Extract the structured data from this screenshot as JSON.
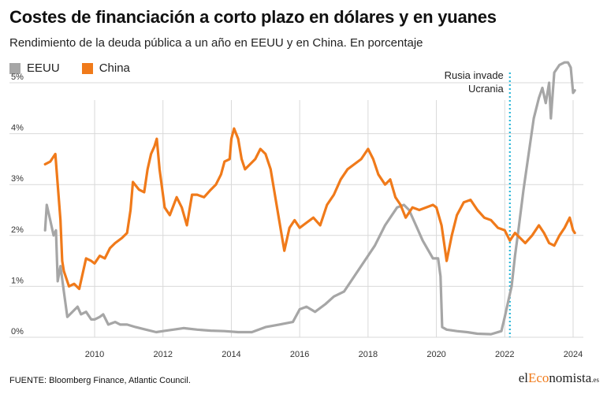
{
  "header": {
    "title": "Costes de financiación a corto plazo en dólares y en yuanes",
    "subtitle": "Rendimiento de la deuda pública a un año en EEUU y en China. En porcentaje"
  },
  "legend": [
    {
      "name": "EEUU",
      "color": "#a6a6a6"
    },
    {
      "name": "China",
      "color": "#f07a1a"
    }
  ],
  "footer": {
    "source": "FUENTE: Bloomberg Finance, Atlantic Council.",
    "logo_prefix": "el",
    "logo_accent": "Eco",
    "logo_suffix": "nomista",
    "logo_tld": ".es"
  },
  "chart_data": {
    "type": "line",
    "title": "Costes de financiación a corto plazo en dólares y en yuanes",
    "subtitle": "Rendimiento de la deuda pública a un año en EEUU y en China. En porcentaje",
    "xlabel": "",
    "ylabel": "",
    "xlim": [
      2008.2,
      2024.3
    ],
    "ylim": [
      0,
      5
    ],
    "grid": true,
    "legend_position": "top-left",
    "x_ticks": [
      2010,
      2012,
      2014,
      2016,
      2018,
      2020,
      2022,
      2024
    ],
    "y_ticks": [
      0,
      1,
      2,
      3,
      4,
      5
    ],
    "y_tick_labels": [
      "0%",
      "1%",
      "2%",
      "3%",
      "4%",
      "5%"
    ],
    "annotations": [
      {
        "x": 2022.15,
        "label_lines": [
          "Rusia invade",
          "Ucrania"
        ],
        "style": "dotted-vertical",
        "color": "#29b6d8"
      }
    ],
    "series": [
      {
        "name": "EEUU",
        "color": "#a6a6a6",
        "points": [
          [
            2008.55,
            2.1
          ],
          [
            2008.6,
            2.6
          ],
          [
            2008.7,
            2.3
          ],
          [
            2008.8,
            2.0
          ],
          [
            2008.87,
            2.1
          ],
          [
            2008.92,
            1.1
          ],
          [
            2009.0,
            1.4
          ],
          [
            2009.1,
            0.9
          ],
          [
            2009.2,
            0.4
          ],
          [
            2009.35,
            0.5
          ],
          [
            2009.5,
            0.6
          ],
          [
            2009.6,
            0.45
          ],
          [
            2009.75,
            0.5
          ],
          [
            2009.9,
            0.35
          ],
          [
            2010.0,
            0.35
          ],
          [
            2010.15,
            0.4
          ],
          [
            2010.25,
            0.45
          ],
          [
            2010.4,
            0.25
          ],
          [
            2010.6,
            0.3
          ],
          [
            2010.75,
            0.25
          ],
          [
            2010.95,
            0.25
          ],
          [
            2011.2,
            0.2
          ],
          [
            2011.5,
            0.15
          ],
          [
            2011.8,
            0.1
          ],
          [
            2012.0,
            0.12
          ],
          [
            2012.3,
            0.15
          ],
          [
            2012.6,
            0.18
          ],
          [
            2013.0,
            0.15
          ],
          [
            2013.4,
            0.13
          ],
          [
            2013.8,
            0.12
          ],
          [
            2014.2,
            0.1
          ],
          [
            2014.6,
            0.1
          ],
          [
            2015.0,
            0.2
          ],
          [
            2015.4,
            0.25
          ],
          [
            2015.8,
            0.3
          ],
          [
            2016.0,
            0.55
          ],
          [
            2016.2,
            0.6
          ],
          [
            2016.45,
            0.5
          ],
          [
            2016.75,
            0.65
          ],
          [
            2017.0,
            0.8
          ],
          [
            2017.3,
            0.9
          ],
          [
            2017.6,
            1.2
          ],
          [
            2017.9,
            1.5
          ],
          [
            2018.2,
            1.8
          ],
          [
            2018.5,
            2.2
          ],
          [
            2018.85,
            2.55
          ],
          [
            2019.05,
            2.6
          ],
          [
            2019.2,
            2.5
          ],
          [
            2019.4,
            2.2
          ],
          [
            2019.6,
            1.9
          ],
          [
            2019.9,
            1.55
          ],
          [
            2020.05,
            1.55
          ],
          [
            2020.12,
            1.2
          ],
          [
            2020.17,
            0.2
          ],
          [
            2020.3,
            0.15
          ],
          [
            2020.6,
            0.12
          ],
          [
            2020.9,
            0.1
          ],
          [
            2021.2,
            0.07
          ],
          [
            2021.6,
            0.06
          ],
          [
            2021.9,
            0.12
          ],
          [
            2022.0,
            0.4
          ],
          [
            2022.1,
            0.7
          ],
          [
            2022.2,
            1.0
          ],
          [
            2022.3,
            1.6
          ],
          [
            2022.4,
            2.1
          ],
          [
            2022.55,
            2.9
          ],
          [
            2022.7,
            3.6
          ],
          [
            2022.85,
            4.3
          ],
          [
            2023.0,
            4.7
          ],
          [
            2023.1,
            4.9
          ],
          [
            2023.2,
            4.6
          ],
          [
            2023.3,
            5.0
          ],
          [
            2023.35,
            4.3
          ],
          [
            2023.45,
            5.2
          ],
          [
            2023.6,
            5.35
          ],
          [
            2023.75,
            5.4
          ],
          [
            2023.85,
            5.4
          ],
          [
            2023.93,
            5.3
          ],
          [
            2024.0,
            4.8
          ],
          [
            2024.05,
            4.85
          ]
        ]
      },
      {
        "name": "China",
        "color": "#f07a1a",
        "points": [
          [
            2008.55,
            3.4
          ],
          [
            2008.7,
            3.45
          ],
          [
            2008.85,
            3.6
          ],
          [
            2008.92,
            3.0
          ],
          [
            2009.0,
            2.3
          ],
          [
            2009.05,
            1.5
          ],
          [
            2009.1,
            1.3
          ],
          [
            2009.25,
            1.0
          ],
          [
            2009.4,
            1.05
          ],
          [
            2009.55,
            0.95
          ],
          [
            2009.75,
            1.55
          ],
          [
            2009.9,
            1.5
          ],
          [
            2010.0,
            1.45
          ],
          [
            2010.15,
            1.6
          ],
          [
            2010.3,
            1.55
          ],
          [
            2010.45,
            1.75
          ],
          [
            2010.6,
            1.85
          ],
          [
            2010.8,
            1.95
          ],
          [
            2010.95,
            2.05
          ],
          [
            2011.05,
            2.5
          ],
          [
            2011.12,
            3.05
          ],
          [
            2011.3,
            2.9
          ],
          [
            2011.45,
            2.85
          ],
          [
            2011.55,
            3.3
          ],
          [
            2011.65,
            3.6
          ],
          [
            2011.75,
            3.75
          ],
          [
            2011.82,
            3.9
          ],
          [
            2011.9,
            3.3
          ],
          [
            2012.05,
            2.55
          ],
          [
            2012.2,
            2.4
          ],
          [
            2012.4,
            2.75
          ],
          [
            2012.55,
            2.55
          ],
          [
            2012.7,
            2.2
          ],
          [
            2012.85,
            2.8
          ],
          [
            2013.0,
            2.8
          ],
          [
            2013.2,
            2.75
          ],
          [
            2013.4,
            2.9
          ],
          [
            2013.55,
            3.0
          ],
          [
            2013.7,
            3.2
          ],
          [
            2013.8,
            3.45
          ],
          [
            2013.95,
            3.5
          ],
          [
            2014.0,
            3.9
          ],
          [
            2014.08,
            4.1
          ],
          [
            2014.2,
            3.9
          ],
          [
            2014.3,
            3.5
          ],
          [
            2014.4,
            3.3
          ],
          [
            2014.55,
            3.4
          ],
          [
            2014.7,
            3.5
          ],
          [
            2014.85,
            3.7
          ],
          [
            2015.0,
            3.6
          ],
          [
            2015.15,
            3.3
          ],
          [
            2015.3,
            2.7
          ],
          [
            2015.45,
            2.1
          ],
          [
            2015.55,
            1.7
          ],
          [
            2015.7,
            2.15
          ],
          [
            2015.85,
            2.3
          ],
          [
            2016.0,
            2.15
          ],
          [
            2016.2,
            2.25
          ],
          [
            2016.4,
            2.35
          ],
          [
            2016.6,
            2.2
          ],
          [
            2016.8,
            2.6
          ],
          [
            2017.0,
            2.8
          ],
          [
            2017.2,
            3.1
          ],
          [
            2017.4,
            3.3
          ],
          [
            2017.6,
            3.4
          ],
          [
            2017.8,
            3.5
          ],
          [
            2018.0,
            3.7
          ],
          [
            2018.15,
            3.5
          ],
          [
            2018.3,
            3.2
          ],
          [
            2018.5,
            3.0
          ],
          [
            2018.65,
            3.1
          ],
          [
            2018.8,
            2.75
          ],
          [
            2018.95,
            2.6
          ],
          [
            2019.1,
            2.35
          ],
          [
            2019.3,
            2.55
          ],
          [
            2019.5,
            2.5
          ],
          [
            2019.7,
            2.55
          ],
          [
            2019.9,
            2.6
          ],
          [
            2020.0,
            2.55
          ],
          [
            2020.15,
            2.2
          ],
          [
            2020.3,
            1.5
          ],
          [
            2020.45,
            2.0
          ],
          [
            2020.6,
            2.4
          ],
          [
            2020.8,
            2.65
          ],
          [
            2021.0,
            2.7
          ],
          [
            2021.2,
            2.5
          ],
          [
            2021.4,
            2.35
          ],
          [
            2021.6,
            2.3
          ],
          [
            2021.8,
            2.15
          ],
          [
            2022.0,
            2.1
          ],
          [
            2022.15,
            1.9
          ],
          [
            2022.3,
            2.05
          ],
          [
            2022.45,
            1.95
          ],
          [
            2022.6,
            1.85
          ],
          [
            2022.8,
            2.0
          ],
          [
            2023.0,
            2.2
          ],
          [
            2023.15,
            2.05
          ],
          [
            2023.3,
            1.85
          ],
          [
            2023.45,
            1.8
          ],
          [
            2023.6,
            2.0
          ],
          [
            2023.75,
            2.15
          ],
          [
            2023.9,
            2.35
          ],
          [
            2024.0,
            2.1
          ],
          [
            2024.05,
            2.05
          ]
        ]
      }
    ]
  }
}
